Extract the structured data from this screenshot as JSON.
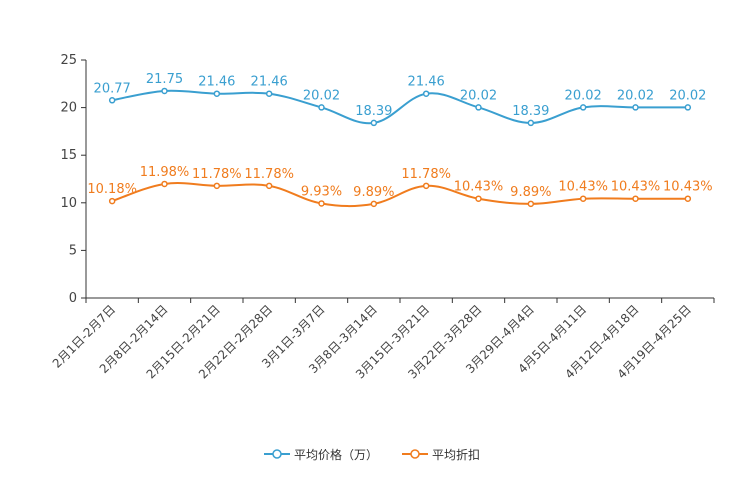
{
  "chart_data": {
    "type": "line",
    "title": "",
    "xlabel": "",
    "ylabel": "",
    "ylim": [
      0,
      25
    ],
    "yticks": [
      0,
      5,
      10,
      15,
      20,
      25
    ],
    "grid": false,
    "legend_position": "bottom",
    "categories": [
      "2月1日-2月7日",
      "2月8日-2月14日",
      "2月15日-2月21日",
      "2月22日-2月28日",
      "3月1日-3月7日",
      "3月8日-3月14日",
      "3月15日-3月21日",
      "3月22日-3月28日",
      "3月29日-4月4日",
      "4月5日-4月11日",
      "4月12日-4月18日",
      "4月19日-4月25日"
    ],
    "series": [
      {
        "name": "平均价格（万）",
        "color": "#3a9fd0",
        "values": [
          20.77,
          21.75,
          21.46,
          21.46,
          20.02,
          18.39,
          21.46,
          20.02,
          18.39,
          20.02,
          20.02,
          20.02
        ],
        "labels": [
          "20.77",
          "21.75",
          "21.46",
          "21.46",
          "20.02",
          "18.39",
          "21.46",
          "20.02",
          "18.39",
          "20.02",
          "20.02",
          "20.02"
        ]
      },
      {
        "name": "平均折扣",
        "color": "#f07c1e",
        "values": [
          10.18,
          11.98,
          11.78,
          11.78,
          9.93,
          9.89,
          11.78,
          10.43,
          9.89,
          10.43,
          10.43,
          10.43
        ],
        "labels": [
          "10.18%",
          "11.98%",
          "11.78%",
          "11.78%",
          "9.93%",
          "9.89%",
          "11.78%",
          "10.43%",
          "9.89%",
          "10.43%",
          "10.43%",
          "10.43%"
        ]
      }
    ]
  }
}
